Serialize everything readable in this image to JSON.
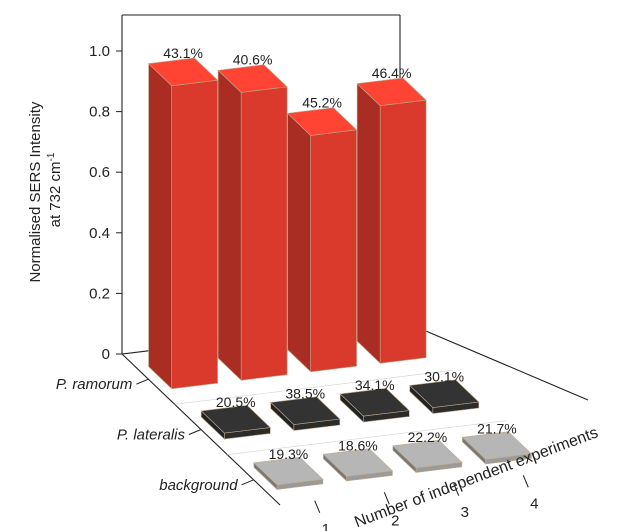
{
  "chart_data": {
    "type": "bar",
    "subtype": "3d-bar",
    "title": "",
    "ylabel_line1": "Normalised SERS Intensity",
    "ylabel_line2_prefix": "at 732 cm",
    "ylabel_superscript": "-1",
    "xlabel": "Number of independent experiments",
    "categories": [
      "1",
      "2",
      "3",
      "4"
    ],
    "yticks": [
      "0",
      "0.2",
      "0.4",
      "0.6",
      "0.8",
      "1.0"
    ],
    "ylim": [
      0,
      1.1
    ],
    "grid": false,
    "series": [
      {
        "name": "P. ramorum",
        "values": [
          1.0,
          0.95,
          0.78,
          0.85
        ],
        "labels": [
          "43.1%",
          "40.6%",
          "45.2%",
          "46.4%"
        ],
        "color": "#d93a2b"
      },
      {
        "name": "P. lateralis",
        "values": [
          0.02,
          0.02,
          0.02,
          0.02
        ],
        "labels": [
          "20.5%",
          "38.5%",
          "34.1%",
          "30.1%"
        ],
        "color": "#2b2b2b"
      },
      {
        "name": "background",
        "values": [
          0.015,
          0.015,
          0.015,
          0.015
        ],
        "labels": [
          "19.3%",
          "18.6%",
          "22.2%",
          "21.7%"
        ],
        "color": "#9a9a9a"
      }
    ]
  }
}
